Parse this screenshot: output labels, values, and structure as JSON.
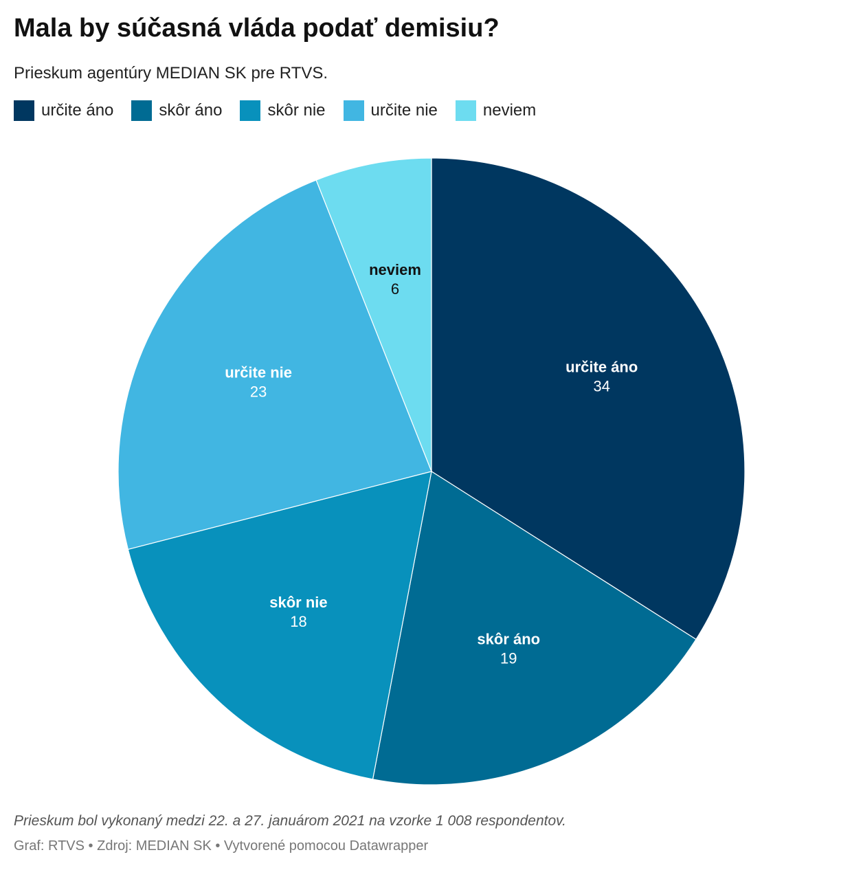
{
  "chart_data": {
    "type": "pie",
    "title": "Mala by súčasná vláda podať demisiu?",
    "subtitle": "Prieskum agentúry MEDIAN SK pre RTVS.",
    "categories": [
      "určite áno",
      "skôr áno",
      "skôr nie",
      "určite nie",
      "neviem"
    ],
    "values": [
      34,
      19,
      18,
      23,
      6
    ],
    "colors": [
      "#003760",
      "#006b93",
      "#0891bc",
      "#41b6e2",
      "#6ddcf0"
    ],
    "note": "Prieskum bol vykonaný medzi 22. a 27. januárom 2021 na vzorke 1 008 respondentov.",
    "credits": "Graf: RTVS • Zdroj: MEDIAN SK • Vytvorené pomocou Datawrapper"
  }
}
